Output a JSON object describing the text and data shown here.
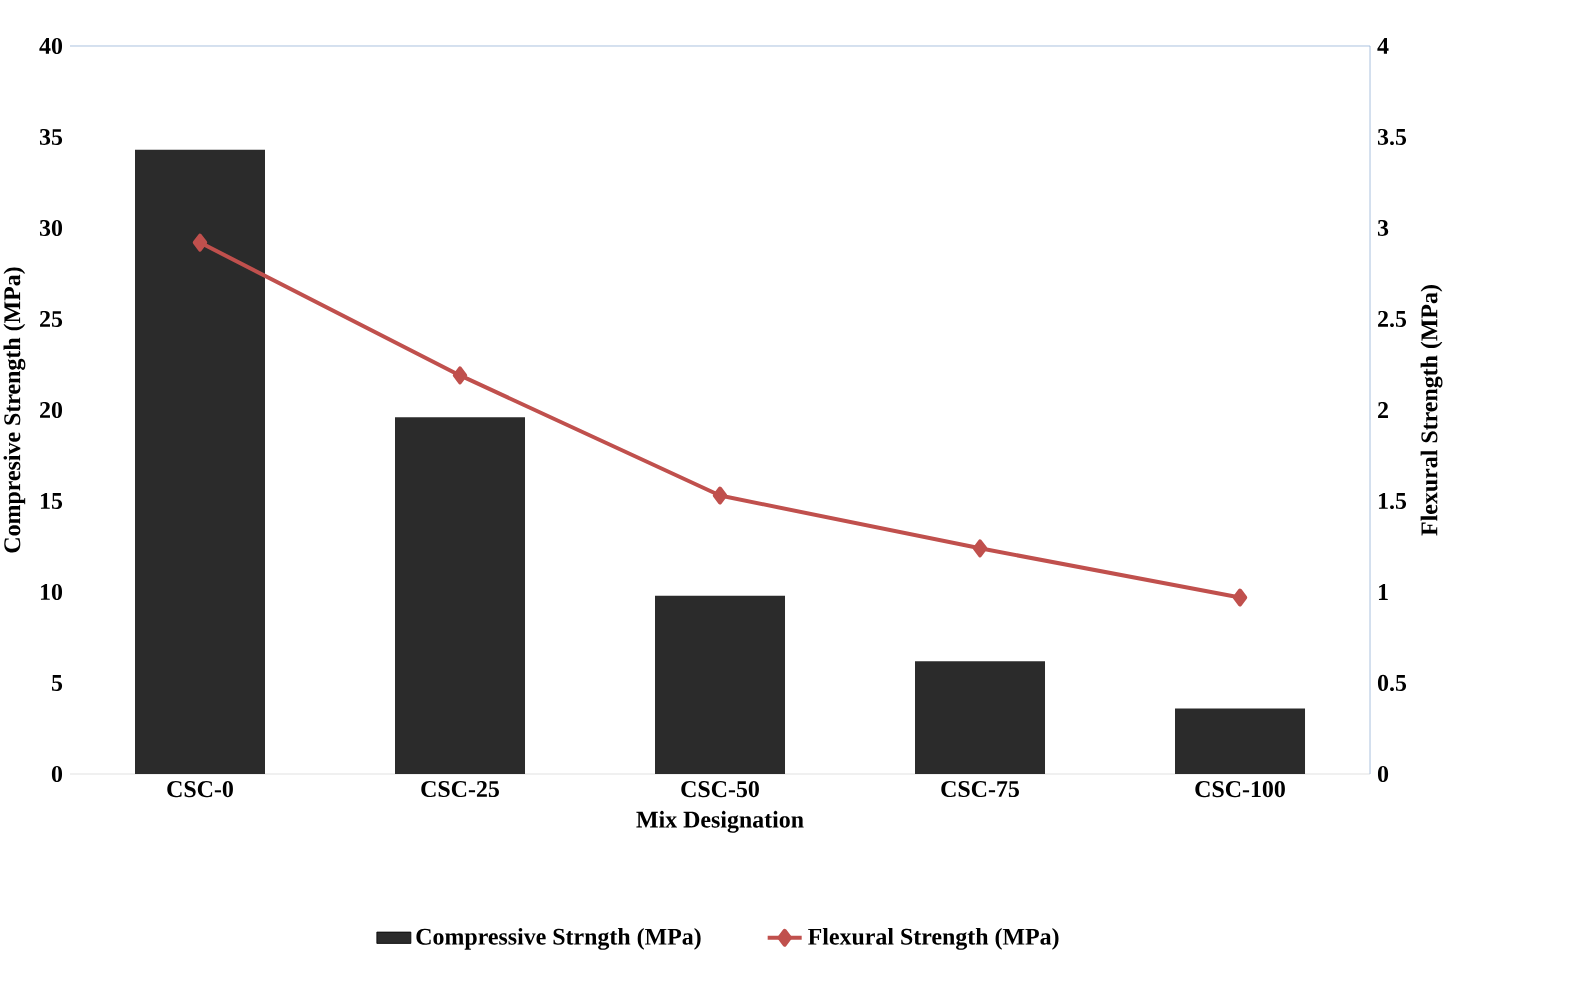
{
  "chart_data": {
    "type": "bar",
    "categories": [
      "CSC-0",
      "CSC-25",
      "CSC-50",
      "CSC-75",
      "CSC-100"
    ],
    "series": [
      {
        "name": "Compressive Strngth (MPa)",
        "color": "#2b2b2b",
        "values": [
          34.3,
          19.6,
          9.8,
          6.2,
          3.6
        ]
      },
      {
        "name": "Flexural Strength (MPa)",
        "color": "#c0504d",
        "type": "line",
        "axis": "y2",
        "marker": "diamond",
        "values": [
          2.92,
          2.19,
          1.53,
          1.24,
          0.97
        ]
      }
    ],
    "xlabel": "Mix Designation",
    "ylabel": "Compresive Strength (MPa)",
    "y2label": "Flexural Strength (MPa)",
    "ylim": [
      0,
      40
    ],
    "yticks": [
      0,
      5,
      10,
      15,
      20,
      25,
      30,
      35,
      40
    ],
    "y2lim": [
      0,
      4
    ],
    "y2ticks": [
      0,
      0.5,
      1,
      1.5,
      2,
      2.5,
      3,
      3.5,
      4
    ],
    "legend": "bottom"
  }
}
